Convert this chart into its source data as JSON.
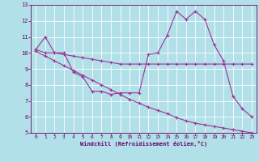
{
  "xlabel": "Windchill (Refroidissement éolien,°C)",
  "bg_color": "#b2e0e8",
  "grid_color": "#ffffff",
  "line_color": "#993399",
  "xlim": [
    -0.5,
    23.5
  ],
  "ylim": [
    5,
    13
  ],
  "xticks": [
    0,
    1,
    2,
    3,
    4,
    5,
    6,
    7,
    8,
    9,
    10,
    11,
    12,
    13,
    14,
    15,
    16,
    17,
    18,
    19,
    20,
    21,
    22,
    23
  ],
  "yticks": [
    5,
    6,
    7,
    8,
    9,
    10,
    11,
    12,
    13
  ],
  "line1_x": [
    0,
    1,
    2,
    3,
    4,
    5,
    6,
    7,
    8,
    9,
    10,
    11,
    12,
    13,
    14,
    15,
    16,
    17,
    18,
    19,
    20,
    21,
    22,
    23
  ],
  "line1_y": [
    10.2,
    11.0,
    10.0,
    10.0,
    8.8,
    8.5,
    7.6,
    7.6,
    7.4,
    7.5,
    7.5,
    7.5,
    9.9,
    10.0,
    11.1,
    12.6,
    12.1,
    12.6,
    12.1,
    10.5,
    9.5,
    7.3,
    6.5,
    6.0
  ],
  "line2_x": [
    0,
    1,
    2,
    3,
    4,
    5,
    6,
    7,
    8,
    9,
    10,
    11,
    12,
    13,
    14,
    15,
    16,
    17,
    18,
    19,
    20,
    21,
    22,
    23
  ],
  "line2_y": [
    10.2,
    10.0,
    10.0,
    9.9,
    9.8,
    9.7,
    9.6,
    9.5,
    9.4,
    9.3,
    9.3,
    9.3,
    9.3,
    9.3,
    9.3,
    9.3,
    9.3,
    9.3,
    9.3,
    9.3,
    9.3,
    9.3,
    9.3,
    9.3
  ],
  "line3_x": [
    0,
    1,
    2,
    3,
    4,
    5,
    6,
    7,
    8,
    9,
    10,
    11,
    12,
    13,
    14,
    15,
    16,
    17,
    18,
    19,
    20,
    21,
    22,
    23
  ],
  "line3_y": [
    10.1,
    9.8,
    9.5,
    9.2,
    8.9,
    8.6,
    8.3,
    8.0,
    7.7,
    7.4,
    7.1,
    6.85,
    6.6,
    6.4,
    6.2,
    5.95,
    5.75,
    5.6,
    5.5,
    5.4,
    5.3,
    5.2,
    5.1,
    5.0
  ]
}
